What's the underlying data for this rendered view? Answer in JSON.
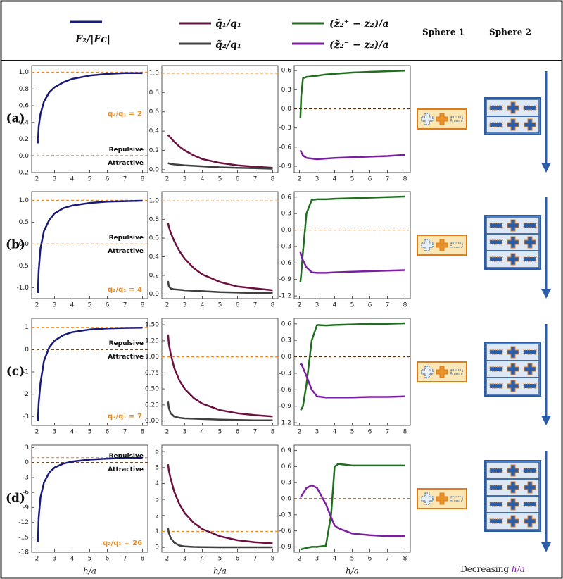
{
  "rows": [
    "(a)",
    "(b)",
    "(c)",
    "(d)"
  ],
  "sphere_labels": [
    "Sphere 1",
    "Sphere 2"
  ],
  "footer": {
    "text": "Decreasing",
    "variable": "h/a"
  },
  "chart_data": [
    {
      "type": "line",
      "xlim": [
        1.7,
        8.3
      ],
      "xticks": [
        2,
        3,
        4,
        5,
        6,
        7,
        8
      ],
      "ylim": [
        -0.2,
        1.08
      ],
      "yticks": [
        -0.2,
        {
          "value": 0,
          "label": "0.0"
        },
        0.2,
        0.4,
        0.6,
        0.8,
        {
          "value": 1,
          "label": "1.0"
        }
      ],
      "x": [
        2.05,
        2.1,
        2.2,
        2.4,
        2.7,
        3,
        3.5,
        4,
        5,
        6,
        7,
        8
      ],
      "series": [
        {
          "name": "F₂/|Fᴄ|",
          "color": "#1a1a78",
          "values": [
            0.15,
            0.35,
            0.5,
            0.65,
            0.76,
            0.82,
            0.88,
            0.92,
            0.96,
            0.98,
            0.99,
            0.99
          ]
        }
      ],
      "hlines": [
        {
          "value": 1,
          "color": "#f28c28"
        },
        {
          "value": 0,
          "color": "#5a3310"
        }
      ],
      "annotations": [
        "Repulsive",
        "Attractive",
        "q₂/q₁ = 2"
      ]
    },
    {
      "type": "line",
      "xlim": [
        1.7,
        8.3
      ],
      "xticks": [
        2,
        3,
        4,
        5,
        6,
        7,
        8
      ],
      "ylim": [
        -0.03,
        1.08
      ],
      "yticks": [
        {
          "value": 0,
          "label": "0.0"
        },
        0.2,
        0.4,
        0.6,
        0.8,
        {
          "value": 1,
          "label": "1.0"
        }
      ],
      "x": [
        2.05,
        2.1,
        2.2,
        2.4,
        2.7,
        3,
        3.5,
        4,
        5,
        6,
        7,
        8
      ],
      "series": [
        {
          "name": "q̃₁/q₁",
          "color": "#6b1040",
          "values": [
            0.36,
            0.35,
            0.33,
            0.29,
            0.24,
            0.2,
            0.15,
            0.11,
            0.07,
            0.045,
            0.03,
            0.02
          ]
        },
        {
          "name": "q̃₂/q₁",
          "color": "#404040",
          "values": [
            0.07,
            0.065,
            0.06,
            0.055,
            0.05,
            0.045,
            0.04,
            0.035,
            0.025,
            0.02,
            0.015,
            0.01
          ]
        }
      ],
      "hlines": [
        {
          "value": 1,
          "color": "#f28c28"
        }
      ]
    },
    {
      "type": "line",
      "xlim": [
        1.7,
        8.3
      ],
      "xticks": [
        2,
        3,
        4,
        5,
        6,
        7,
        8
      ],
      "ylim": [
        -1.0,
        0.68
      ],
      "yticks": [
        -0.9,
        -0.6,
        -0.3,
        {
          "value": 0,
          "label": "0.0"
        },
        0.3,
        0.6
      ],
      "x": [
        2.05,
        2.1,
        2.2,
        2.4,
        2.7,
        3,
        3.5,
        4,
        5,
        6,
        7,
        8
      ],
      "series": [
        {
          "name": "(z̃₂⁺ − z₂)/a",
          "color": "#1f6f1f",
          "values": [
            -0.15,
            0.2,
            0.48,
            0.5,
            0.51,
            0.52,
            0.54,
            0.55,
            0.57,
            0.58,
            0.59,
            0.6
          ]
        },
        {
          "name": "(z̃₂⁻ − z₂)/a",
          "color": "#7b1fa2",
          "values": [
            -0.65,
            -0.68,
            -0.73,
            -0.77,
            -0.78,
            -0.79,
            -0.78,
            -0.77,
            -0.76,
            -0.75,
            -0.74,
            -0.72
          ]
        }
      ],
      "hlines": [
        {
          "value": 0,
          "color": "#5a3310"
        }
      ]
    },
    {
      "type": "line",
      "xlim": [
        1.7,
        8.3
      ],
      "xticks": [
        2,
        3,
        4,
        5,
        6,
        7,
        8
      ],
      "ylim": [
        -1.25,
        1.2
      ],
      "yticks": [
        {
          "value": -1,
          "label": "-1.0"
        },
        -0.5,
        {
          "value": 0,
          "label": "0.0"
        },
        0.5,
        {
          "value": 1,
          "label": "1.0"
        }
      ],
      "x": [
        2.05,
        2.1,
        2.2,
        2.4,
        2.7,
        3,
        3.5,
        4,
        5,
        6,
        7,
        8
      ],
      "series": [
        {
          "color": "#1a1a78",
          "values": [
            -1.12,
            -0.6,
            -0.1,
            0.3,
            0.55,
            0.7,
            0.82,
            0.88,
            0.94,
            0.97,
            0.98,
            0.99
          ]
        }
      ],
      "hlines": [
        {
          "value": 1,
          "color": "#f28c28"
        },
        {
          "value": 0,
          "color": "#5a3310"
        }
      ],
      "annotations": [
        "Repulsive",
        "Attractive",
        "q₂/q₁ = 4"
      ]
    },
    {
      "type": "line",
      "xlim": [
        1.7,
        8.3
      ],
      "xticks": [
        2,
        3,
        4,
        5,
        6,
        7,
        8
      ],
      "ylim": [
        -0.05,
        1.1
      ],
      "yticks": [
        {
          "value": 0,
          "label": "0.0"
        },
        0.2,
        0.4,
        0.6,
        0.8,
        {
          "value": 1,
          "label": "1.0"
        }
      ],
      "x": [
        2.05,
        2.1,
        2.2,
        2.4,
        2.7,
        3,
        3.5,
        4,
        5,
        6,
        7,
        8
      ],
      "series": [
        {
          "color": "#6b1040",
          "values": [
            0.76,
            0.72,
            0.66,
            0.57,
            0.46,
            0.38,
            0.28,
            0.21,
            0.13,
            0.08,
            0.06,
            0.04
          ]
        },
        {
          "color": "#404040",
          "values": [
            0.14,
            0.08,
            0.06,
            0.05,
            0.045,
            0.04,
            0.035,
            0.03,
            0.02,
            0.015,
            0.01,
            0.01
          ]
        }
      ],
      "hlines": [
        {
          "value": 1,
          "color": "#f28c28"
        }
      ]
    },
    {
      "type": "line",
      "xlim": [
        1.7,
        8.3
      ],
      "xticks": [
        2,
        3,
        4,
        5,
        6,
        7,
        8
      ],
      "ylim": [
        -1.25,
        0.7
      ],
      "yticks": [
        -1.2,
        -0.9,
        -0.6,
        -0.3,
        {
          "value": 0,
          "label": "0.0"
        },
        0.3,
        0.6
      ],
      "x": [
        2.05,
        2.1,
        2.2,
        2.4,
        2.7,
        3,
        3.5,
        4,
        5,
        6,
        7,
        8
      ],
      "series": [
        {
          "color": "#1f6f1f",
          "values": [
            -0.95,
            -0.8,
            -0.4,
            0.3,
            0.55,
            0.56,
            0.56,
            0.57,
            0.58,
            0.59,
            0.6,
            0.61
          ]
        },
        {
          "color": "#7b1fa2",
          "values": [
            -0.4,
            -0.47,
            -0.55,
            -0.68,
            -0.77,
            -0.78,
            -0.78,
            -0.77,
            -0.76,
            -0.75,
            -0.74,
            -0.73
          ]
        }
      ],
      "hlines": [
        {
          "value": 0,
          "color": "#5a3310"
        }
      ]
    },
    {
      "type": "line",
      "xlim": [
        1.7,
        8.3
      ],
      "xticks": [
        2,
        3,
        4,
        5,
        6,
        7,
        8
      ],
      "ylim": [
        -3.4,
        1.4
      ],
      "yticks": [
        -3,
        -2,
        -1,
        0,
        1
      ],
      "x": [
        2.05,
        2.1,
        2.2,
        2.4,
        2.7,
        3,
        3.5,
        4,
        5,
        6,
        7,
        8
      ],
      "series": [
        {
          "color": "#1a1a78",
          "values": [
            -3.2,
            -2.4,
            -1.5,
            -0.5,
            0.1,
            0.4,
            0.65,
            0.78,
            0.9,
            0.95,
            0.97,
            0.98
          ]
        }
      ],
      "hlines": [
        {
          "value": 1,
          "color": "#f28c28"
        },
        {
          "value": 0,
          "color": "#5a3310"
        }
      ],
      "annotations": [
        "Repulsive",
        "Attractive",
        "q₂/q₁ = 7"
      ]
    },
    {
      "type": "line",
      "xlim": [
        1.7,
        8.3
      ],
      "xticks": [
        2,
        3,
        4,
        5,
        6,
        7,
        8
      ],
      "ylim": [
        -0.07,
        1.6
      ],
      "yticks": [
        {
          "value": 0,
          "label": "0.00"
        },
        0.25,
        {
          "value": 0.5,
          "label": "0.50"
        },
        0.75,
        {
          "value": 1,
          "label": "1.00"
        },
        1.25,
        {
          "value": 1.5,
          "label": "1.50"
        }
      ],
      "x": [
        2.05,
        2.1,
        2.2,
        2.4,
        2.7,
        3,
        3.5,
        4,
        5,
        6,
        7,
        8
      ],
      "series": [
        {
          "color": "#6b1040",
          "values": [
            1.35,
            1.2,
            1.05,
            0.83,
            0.63,
            0.5,
            0.36,
            0.27,
            0.17,
            0.12,
            0.09,
            0.07
          ]
        },
        {
          "color": "#404040",
          "values": [
            0.3,
            0.2,
            0.12,
            0.07,
            0.05,
            0.04,
            0.035,
            0.03,
            0.02,
            0.015,
            0.01,
            0.01
          ]
        }
      ],
      "hlines": [
        {
          "value": 1,
          "color": "#f28c28"
        }
      ]
    },
    {
      "type": "line",
      "xlim": [
        1.7,
        8.3
      ],
      "xticks": [
        2,
        3,
        4,
        5,
        6,
        7,
        8
      ],
      "ylim": [
        -1.25,
        0.7
      ],
      "yticks": [
        -1.2,
        -0.9,
        -0.6,
        -0.3,
        {
          "value": 0,
          "label": "0.0"
        },
        0.3,
        0.6
      ],
      "x": [
        2.05,
        2.1,
        2.2,
        2.4,
        2.7,
        3,
        3.5,
        4,
        5,
        6,
        7,
        8
      ],
      "series": [
        {
          "color": "#1f6f1f",
          "values": [
            -0.97,
            -0.96,
            -0.9,
            -0.5,
            0.3,
            0.58,
            0.57,
            0.58,
            0.59,
            0.6,
            0.6,
            0.61
          ]
        },
        {
          "color": "#7b1fa2",
          "values": [
            -0.15,
            -0.12,
            -0.2,
            -0.35,
            -0.6,
            -0.72,
            -0.74,
            -0.74,
            -0.74,
            -0.73,
            -0.73,
            -0.72
          ]
        }
      ],
      "hlines": [
        {
          "value": 0,
          "color": "#5a3310"
        }
      ]
    },
    {
      "type": "line",
      "xlim": [
        1.7,
        8.3
      ],
      "xticks": [
        2,
        3,
        4,
        5,
        6,
        7,
        8
      ],
      "xlabel": "h/a",
      "ylim": [
        -18,
        3.5
      ],
      "yticks": [
        -18,
        -15,
        -12,
        -9,
        -6,
        -3,
        0,
        3
      ],
      "x": [
        2.05,
        2.1,
        2.2,
        2.4,
        2.7,
        3,
        3.5,
        4,
        5,
        6,
        7,
        8
      ],
      "series": [
        {
          "color": "#1a1a78",
          "values": [
            -16,
            -11,
            -7,
            -4,
            -2,
            -1,
            -0.2,
            0.2,
            0.6,
            0.8,
            0.9,
            0.95
          ]
        }
      ],
      "hlines": [
        {
          "value": 1,
          "color": "#f28c28"
        },
        {
          "value": 0,
          "color": "#5a3310"
        }
      ],
      "annotations": [
        "Repulsive",
        "Attractive",
        "q₂/q₁ = 26"
      ]
    },
    {
      "type": "line",
      "xlim": [
        1.7,
        8.3
      ],
      "xticks": [
        2,
        3,
        4,
        5,
        6,
        7,
        8
      ],
      "xlabel": "h/a",
      "ylim": [
        -0.3,
        6.4
      ],
      "yticks": [
        0,
        1,
        2,
        3,
        4,
        5,
        6
      ],
      "x": [
        2.05,
        2.1,
        2.2,
        2.4,
        2.7,
        3,
        3.5,
        4,
        5,
        6,
        7,
        8
      ],
      "series": [
        {
          "color": "#6b1040",
          "values": [
            5.2,
            4.8,
            4.3,
            3.5,
            2.7,
            2.15,
            1.55,
            1.15,
            0.7,
            0.45,
            0.32,
            0.25
          ]
        },
        {
          "color": "#404040",
          "values": [
            1.2,
            0.9,
            0.6,
            0.3,
            0.12,
            0.06,
            0.03,
            0.02,
            0.01,
            0.01,
            0.01,
            0.01
          ]
        }
      ],
      "hlines": [
        {
          "value": 1,
          "color": "#f28c28"
        }
      ]
    },
    {
      "type": "line",
      "xlim": [
        1.7,
        8.3
      ],
      "xticks": [
        2,
        3,
        4,
        5,
        6,
        7,
        8
      ],
      "xlabel": "h/a",
      "ylim": [
        -1.0,
        1.0
      ],
      "yticks": [
        -0.9,
        -0.6,
        -0.3,
        {
          "value": 0,
          "label": "0.0"
        },
        0.3,
        0.6,
        0.9
      ],
      "x": [
        2.05,
        2.4,
        2.7,
        3,
        3.5,
        3.8,
        4,
        4.2,
        5,
        6,
        7,
        8
      ],
      "series": [
        {
          "color": "#1f6f1f",
          "values": [
            -0.95,
            -0.92,
            -0.9,
            -0.9,
            -0.88,
            -0.3,
            0.6,
            0.65,
            0.62,
            0.62,
            0.62,
            0.62
          ]
        },
        {
          "color": "#7b1fa2",
          "values": [
            0.02,
            0.2,
            0.25,
            0.2,
            -0.1,
            -0.35,
            -0.5,
            -0.55,
            -0.65,
            -0.68,
            -0.7,
            -0.7
          ]
        }
      ],
      "hlines": [
        {
          "value": 0,
          "color": "#5a3310"
        }
      ]
    }
  ]
}
